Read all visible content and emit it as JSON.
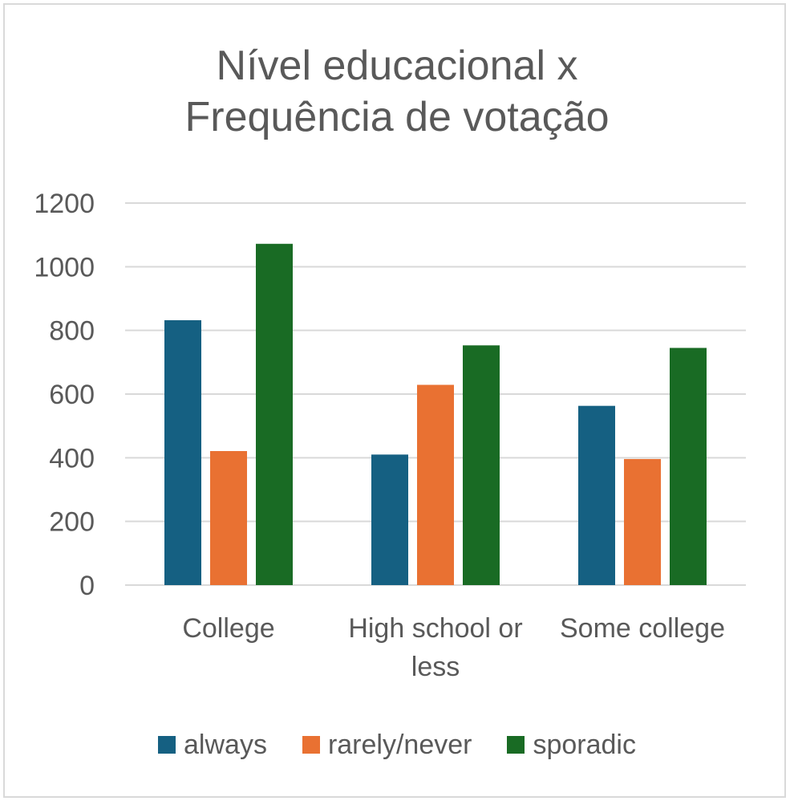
{
  "chart_data": {
    "type": "bar",
    "title_lines": [
      "Nível educacional x",
      "Frequência de votação"
    ],
    "categories": [
      "College",
      "High school or less",
      "Some college"
    ],
    "category_label_lines": [
      [
        "College"
      ],
      [
        "High school or",
        "less"
      ],
      [
        "Some college"
      ]
    ],
    "series": [
      {
        "name": "always",
        "color": "#156082",
        "values": [
          832,
          410,
          563
        ]
      },
      {
        "name": "rarely/never",
        "color": "#E97132",
        "values": [
          421,
          629,
          396
        ]
      },
      {
        "name": "sporadic",
        "color": "#196B24",
        "values": [
          1072,
          753,
          745
        ]
      }
    ],
    "ylim": [
      0,
      1200
    ],
    "yticks": [
      0,
      200,
      400,
      600,
      800,
      1000,
      1200
    ],
    "ytick_labels": [
      "0",
      "200",
      "400",
      "600",
      "800",
      "1000",
      "1200"
    ],
    "grid": true,
    "legend_position": "bottom"
  }
}
